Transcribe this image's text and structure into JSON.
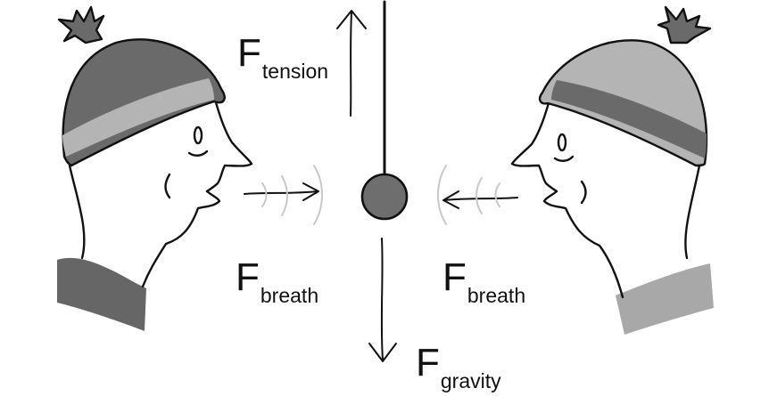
{
  "forces": {
    "tension": {
      "symbol": "F",
      "subscript": "tension"
    },
    "gravity": {
      "symbol": "F",
      "subscript": "gravity"
    },
    "breath_left": {
      "symbol": "F",
      "subscript": "breath"
    },
    "breath_right": {
      "symbol": "F",
      "subscript": "breath"
    }
  },
  "colors": {
    "ink": "#111111",
    "ball": "#6e6e6e",
    "hat_dark": "#6a6a6a",
    "hat_light": "#b4b4b4",
    "collar_left": "#666666",
    "collar_right": "#a8a8a8",
    "breath_arc": "#c8c8c8"
  },
  "icons": {
    "person_left": "person-blowing-right-icon",
    "person_right": "person-blowing-left-icon",
    "pendulum_ball": "pendulum-ball-icon"
  }
}
